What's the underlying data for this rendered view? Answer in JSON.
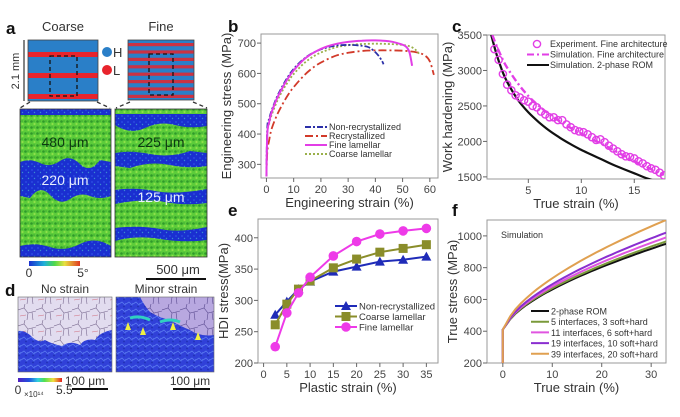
{
  "panels": {
    "a": {
      "label": "a",
      "coarse_title": "Coarse",
      "fine_title": "Fine",
      "height_label": "2.1 mm",
      "legend": [
        {
          "label": "H",
          "color": "#2a7fc8"
        },
        {
          "label": "L",
          "color": "#e8242c"
        }
      ],
      "coarse_map_labels": [
        "480 μm",
        "220 μm"
      ],
      "fine_map_labels": [
        "225 μm",
        "125 μm"
      ],
      "colorbar_min": "0",
      "colorbar_max": "5°",
      "scalebar": "500 μm"
    },
    "d": {
      "label": "d",
      "left_title": "No strain",
      "right_title": "Minor strain",
      "colorbar_min": "0",
      "colorbar_unit": "×10¹⁴",
      "colorbar_max": "5.5",
      "scalebar_left": "100 μm",
      "scalebar_right": "100 μm"
    },
    "b": {
      "label": "b"
    },
    "c": {
      "label": "c"
    },
    "e": {
      "label": "e"
    },
    "f": {
      "label": "f"
    }
  },
  "colors": {
    "high": "#2a7fc8",
    "low": "#e8242c",
    "ebsd_green": "#5ccc3a",
    "ebsd_blue": "#1a2fd0"
  },
  "chart_data": [
    {
      "id": "b",
      "type": "line",
      "title": "",
      "xlabel": "Engineering strain (%)",
      "ylabel": "Engineering stress (MPa)",
      "xlim": [
        -2,
        63
      ],
      "ylim": [
        255,
        730
      ],
      "xticks": [
        0,
        10,
        20,
        30,
        40,
        50,
        60
      ],
      "yticks": [
        300,
        400,
        500,
        600,
        700
      ],
      "legend_position": "center-bottom",
      "series": [
        {
          "name": "Non-recrystallized",
          "color": "#2b2fa8",
          "dash": "6,2,2,2",
          "x": [
            0,
            0.3,
            1,
            2,
            4,
            6,
            8,
            10,
            14,
            18,
            22,
            26,
            30,
            34,
            37,
            39,
            41,
            42.5,
            43
          ],
          "y": [
            260,
            420,
            450,
            480,
            525,
            560,
            590,
            615,
            650,
            672,
            685,
            692,
            694,
            692,
            688,
            678,
            660,
            640,
            630
          ]
        },
        {
          "name": "Recrystallized",
          "color": "#d23a2a",
          "dash": "8,3,2,3",
          "x": [
            0,
            0.3,
            1,
            2,
            4,
            6,
            8,
            10,
            14,
            18,
            22,
            26,
            30,
            35,
            40,
            45,
            50,
            55,
            58,
            60,
            61.5
          ],
          "y": [
            260,
            340,
            380,
            420,
            465,
            500,
            530,
            555,
            595,
            625,
            645,
            660,
            668,
            674,
            676,
            676,
            675,
            670,
            660,
            640,
            595
          ]
        },
        {
          "name": "Fine lamellar",
          "color": "#e23ee6",
          "dash": "",
          "x": [
            0,
            0.3,
            1,
            2,
            4,
            6,
            8,
            10,
            14,
            18,
            22,
            26,
            30,
            35,
            40,
            45,
            48,
            51,
            52.5,
            53.5
          ],
          "y": [
            260,
            400,
            440,
            475,
            520,
            555,
            585,
            610,
            648,
            672,
            688,
            698,
            704,
            708,
            709,
            706,
            700,
            690,
            670,
            625
          ]
        },
        {
          "name": "Coarse lamellar",
          "color": "#9ab04a",
          "dash": "2,2",
          "x": [
            0,
            0.3,
            1,
            2,
            4,
            6,
            8,
            10,
            14,
            18,
            22,
            26,
            30,
            35,
            40,
            45,
            50,
            53,
            55,
            56
          ],
          "y": [
            260,
            400,
            435,
            465,
            510,
            545,
            573,
            598,
            635,
            660,
            676,
            687,
            693,
            697,
            698,
            697,
            694,
            688,
            676,
            665
          ]
        }
      ]
    },
    {
      "id": "c",
      "type": "line",
      "title": "",
      "xlabel": "True strain (%)",
      "ylabel": "Work hardening (MPa)",
      "xlim": [
        1.1,
        17.9
      ],
      "ylim": [
        1470,
        3500
      ],
      "xticks": [
        5,
        10,
        15
      ],
      "yticks": [
        1500,
        2000,
        2500,
        3000,
        3500
      ],
      "legend_position": "top-right",
      "series": [
        {
          "name": "Experiment. Fine architecture",
          "color": "#e23ee6",
          "marker": "circle",
          "x": [
            1.8,
            2.2,
            2.6,
            3.0,
            3.4,
            3.8,
            4.2,
            4.6,
            5.0,
            5.4,
            5.8,
            6.2,
            6.6,
            7.0,
            7.4,
            7.8,
            8.2,
            8.6,
            9.0,
            9.4,
            9.8,
            10.2,
            10.6,
            11.0,
            11.4,
            11.8,
            12.2,
            12.6,
            13.0,
            13.4,
            13.8,
            14.2,
            14.6,
            15.0,
            15.4,
            15.8,
            16.2,
            16.6,
            17.0,
            17.4,
            17.8
          ],
          "y": [
            3300,
            3150,
            2950,
            2800,
            2720,
            2650,
            2620,
            2580,
            2560,
            2500,
            2480,
            2420,
            2380,
            2340,
            2340,
            2300,
            2300,
            2240,
            2200,
            2160,
            2140,
            2130,
            2100,
            2060,
            2020,
            2030,
            1990,
            1940,
            1900,
            1860,
            1820,
            1790,
            1780,
            1760,
            1720,
            1690,
            1650,
            1620,
            1600,
            1560,
            1520
          ]
        },
        {
          "name": "Simulation. Fine architecture",
          "color": "#e23ee6",
          "dash": "7,3,2,3",
          "x": [
            1.6,
            2,
            2.5,
            3,
            4,
            5,
            6,
            7,
            8,
            9,
            10,
            11,
            12,
            13,
            14,
            15,
            16,
            17,
            17.8
          ],
          "y": [
            3500,
            3350,
            3180,
            3040,
            2820,
            2640,
            2500,
            2380,
            2280,
            2190,
            2110,
            2030,
            1960,
            1880,
            1800,
            1720,
            1650,
            1580,
            1530
          ]
        },
        {
          "name": "Simulation. 2-phase ROM",
          "color": "#111111",
          "dash": "",
          "x": [
            1.5,
            2,
            2.5,
            3,
            4,
            5,
            6,
            7,
            8,
            9,
            10,
            11,
            12,
            13,
            14,
            15,
            16,
            17
          ],
          "y": [
            3500,
            3230,
            3010,
            2840,
            2590,
            2410,
            2270,
            2150,
            2050,
            1960,
            1880,
            1810,
            1740,
            1670,
            1610,
            1550,
            1490,
            1440
          ]
        }
      ]
    },
    {
      "id": "e",
      "type": "line",
      "title": "",
      "xlabel": "Plastic strain (%)",
      "ylabel": "HDI stress(MPa)",
      "xlim": [
        -1.2,
        37.5
      ],
      "ylim": [
        200,
        430
      ],
      "xticks": [
        0,
        5,
        10,
        15,
        20,
        25,
        30,
        35
      ],
      "yticks": [
        200,
        250,
        300,
        350,
        400
      ],
      "legend_position": "center-right",
      "x": [
        2.5,
        5,
        7.5,
        10,
        15,
        20,
        25,
        30,
        35
      ],
      "series": [
        {
          "name": "Non-recrystallized",
          "color": "#1f2bb8",
          "marker": "triangle",
          "values": [
            277,
            298,
            318,
            330,
            346,
            354,
            362,
            365,
            370
          ]
        },
        {
          "name": "Coarse lamellar",
          "color": "#8a8d2a",
          "marker": "square",
          "values": [
            261,
            294,
            318,
            331,
            352,
            366,
            377,
            383,
            389
          ]
        },
        {
          "name": "Fine lamellar",
          "color": "#ee3ae8",
          "marker": "circle",
          "values": [
            226,
            280,
            312,
            337,
            371,
            394,
            406,
            411,
            415
          ]
        }
      ]
    },
    {
      "id": "f",
      "type": "line",
      "title": "",
      "annotation": "Simulation",
      "xlabel": "True strain (%)",
      "ylabel": "True stress (MPa)",
      "xlim": [
        -3.2,
        33
      ],
      "ylim": [
        200,
        1100
      ],
      "xticks": [
        0,
        10,
        20,
        30
      ],
      "yticks": [
        200,
        400,
        600,
        800,
        1000
      ],
      "legend_position": "bottom-right",
      "series": [
        {
          "name": "2-phase ROM",
          "color": "#111111",
          "y_end": 950
        },
        {
          "name": "5 interfaces, 3 soft+hard",
          "color": "#7a9a3a",
          "y_end": 965
        },
        {
          "name": "11 interfaces, 6 soft+hard",
          "color": "#e055e0",
          "y_end": 990
        },
        {
          "name": "19 interfaces, 10 soft+hard",
          "color": "#8a2ed0",
          "y_end": 1020
        },
        {
          "name": "39 interfaces, 20 soft+hard",
          "color": "#e0a050",
          "y_end": 1100
        }
      ]
    }
  ]
}
